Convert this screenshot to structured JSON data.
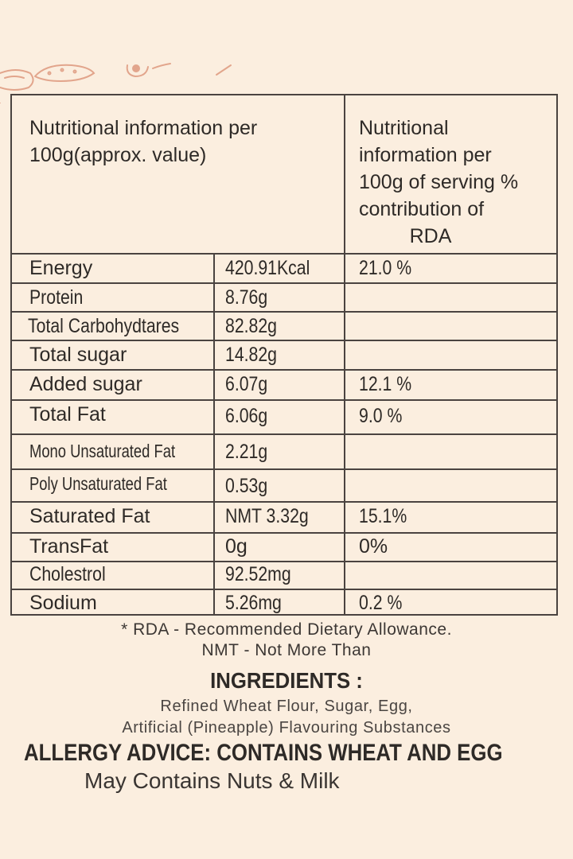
{
  "decor": {
    "icon": "biscuit-doodle-icon",
    "color": "#e2a58c"
  },
  "table": {
    "header_left": [
      "Nutritional information per",
      "100g(approx. value)"
    ],
    "header_right": [
      "Nutritional",
      "information per",
      "100g of serving %",
      "contribution of",
      "RDA"
    ],
    "rows": [
      {
        "nutrient": "Energy",
        "value": "420.91Kcal",
        "rda": "21.0 %"
      },
      {
        "nutrient": "Protein",
        "value": "8.76g",
        "rda": ""
      },
      {
        "nutrient": "Total Carbohydtares",
        "value": "82.82g",
        "rda": ""
      },
      {
        "nutrient": "Total sugar",
        "value": "14.82g",
        "rda": ""
      },
      {
        "nutrient": "Added sugar",
        "value": "6.07g",
        "rda": "12.1 %"
      },
      {
        "nutrient": "Total Fat",
        "value": "6.06g",
        "rda": "9.0 %"
      },
      {
        "nutrient": "Mono Unsaturated Fat",
        "value": "2.21g",
        "rda": ""
      },
      {
        "nutrient": "Poly Unsaturated Fat",
        "value": "0.53g",
        "rda": ""
      },
      {
        "nutrient": "Saturated Fat",
        "value": "NMT 3.32g",
        "rda": "15.1%"
      },
      {
        "nutrient": "TransFat",
        "value": "0g",
        "rda": "0%"
      },
      {
        "nutrient": "Cholestrol",
        "value": "92.52mg",
        "rda": ""
      },
      {
        "nutrient": "Sodium",
        "value": "5.26mg",
        "rda": "0.2 %"
      }
    ]
  },
  "footnotes": {
    "rda": "* RDA - Recommended Dietary Allowance.",
    "nmt": "NMT - Not More Than"
  },
  "ingredients": {
    "title": "INGREDIENTS :",
    "line1": "Refined Wheat Flour, Sugar, Egg,",
    "line2": "Artificial (Pineapple) Flavouring Substances"
  },
  "allergy": {
    "advice": "ALLERGY ADVICE: CONTAINS WHEAT AND EGG",
    "may_contain": "May Contains Nuts & Milk"
  }
}
